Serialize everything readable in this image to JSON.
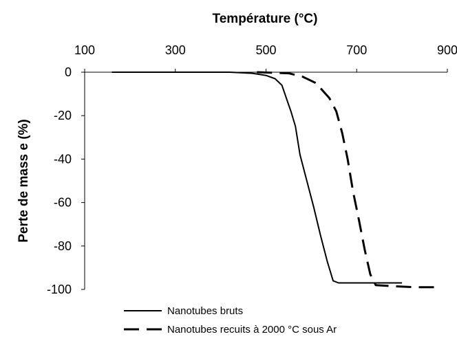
{
  "chart_data": {
    "type": "line",
    "title": "",
    "xlabel": "Température  (°C)",
    "ylabel": "Perte de mass e (%)",
    "xlim": [
      100,
      900
    ],
    "ylim": [
      -100,
      0
    ],
    "x_axis_position": "top",
    "x_ticks": [
      100,
      300,
      500,
      700,
      900
    ],
    "x_tick_labels": [
      "100",
      "300",
      "500",
      "700",
      "900"
    ],
    "y_ticks": [
      0,
      -20,
      -40,
      -60,
      -80,
      -100
    ],
    "y_tick_labels": [
      "0",
      "-20",
      "-40",
      "-60",
      "-80",
      "-100"
    ],
    "grid": false,
    "legend_position": "bottom",
    "series": [
      {
        "name": "Nanotubes bruts",
        "style": "solid",
        "color": "#000000",
        "points": [
          [
            160,
            0
          ],
          [
            300,
            0
          ],
          [
            420,
            0
          ],
          [
            470,
            -0.5
          ],
          [
            500,
            -1.5
          ],
          [
            520,
            -3
          ],
          [
            535,
            -6
          ],
          [
            545,
            -12
          ],
          [
            555,
            -18
          ],
          [
            565,
            -25
          ],
          [
            575,
            -38
          ],
          [
            590,
            -50
          ],
          [
            605,
            -62
          ],
          [
            620,
            -75
          ],
          [
            635,
            -87
          ],
          [
            648,
            -96
          ],
          [
            660,
            -97
          ],
          [
            700,
            -97
          ],
          [
            750,
            -97
          ],
          [
            800,
            -97
          ]
        ]
      },
      {
        "name": "Nanotubes recuits à 2000 °C sous Ar",
        "style": "dashed",
        "color": "#000000",
        "points": [
          [
            480,
            0
          ],
          [
            550,
            -0.5
          ],
          [
            580,
            -2
          ],
          [
            610,
            -5
          ],
          [
            640,
            -12
          ],
          [
            655,
            -18
          ],
          [
            668,
            -28
          ],
          [
            680,
            -40
          ],
          [
            692,
            -55
          ],
          [
            705,
            -68
          ],
          [
            718,
            -82
          ],
          [
            730,
            -93
          ],
          [
            742,
            -98
          ],
          [
            780,
            -98.5
          ],
          [
            830,
            -99
          ],
          [
            880,
            -99
          ]
        ]
      }
    ]
  }
}
